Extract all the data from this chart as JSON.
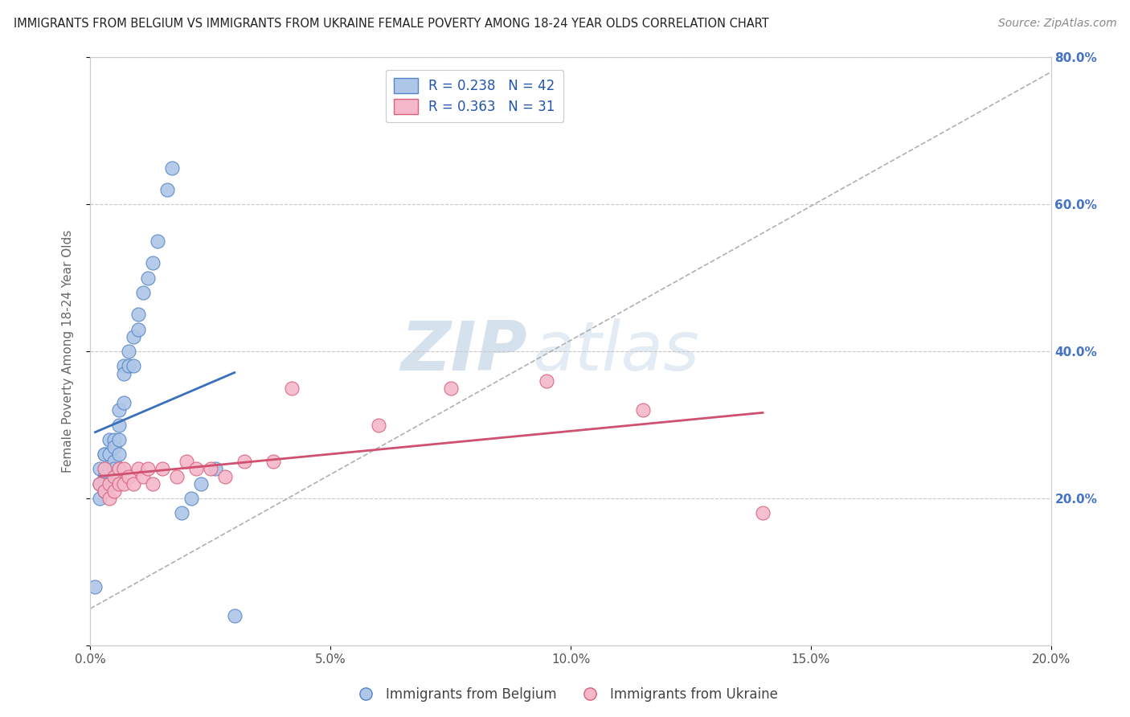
{
  "title": "IMMIGRANTS FROM BELGIUM VS IMMIGRANTS FROM UKRAINE FEMALE POVERTY AMONG 18-24 YEAR OLDS CORRELATION CHART",
  "source": "Source: ZipAtlas.com",
  "ylabel": "Female Poverty Among 18-24 Year Olds",
  "xlim": [
    0.0,
    0.2
  ],
  "ylim": [
    0.0,
    0.8
  ],
  "xticks": [
    0.0,
    0.05,
    0.1,
    0.15,
    0.2
  ],
  "yticks": [
    0.0,
    0.2,
    0.4,
    0.6,
    0.8
  ],
  "xticklabels": [
    "0.0%",
    "5.0%",
    "10.0%",
    "15.0%",
    "20.0%"
  ],
  "yticklabels_right": [
    "",
    "20.0%",
    "40.0%",
    "60.0%",
    "80.0%"
  ],
  "belgium_R": 0.238,
  "belgium_N": 42,
  "ukraine_R": 0.363,
  "ukraine_N": 31,
  "belgium_color": "#aec6e8",
  "ukraine_color": "#f4b8ca",
  "belgium_edge_color": "#5585c5",
  "ukraine_edge_color": "#d9607a",
  "belgium_line_color": "#3a6fbd",
  "ukraine_line_color": "#d05070",
  "legend_label_belgium": "Immigrants from Belgium",
  "legend_label_ukraine": "Immigrants from Ukraine",
  "belgium_scatter_x": [
    0.001,
    0.002,
    0.002,
    0.002,
    0.003,
    0.003,
    0.003,
    0.003,
    0.003,
    0.004,
    0.004,
    0.004,
    0.004,
    0.005,
    0.005,
    0.005,
    0.005,
    0.005,
    0.006,
    0.006,
    0.006,
    0.006,
    0.007,
    0.007,
    0.007,
    0.008,
    0.008,
    0.009,
    0.009,
    0.01,
    0.01,
    0.011,
    0.012,
    0.013,
    0.014,
    0.016,
    0.017,
    0.019,
    0.021,
    0.023,
    0.026,
    0.03
  ],
  "belgium_scatter_y": [
    0.08,
    0.24,
    0.22,
    0.2,
    0.26,
    0.26,
    0.23,
    0.22,
    0.21,
    0.28,
    0.26,
    0.24,
    0.22,
    0.28,
    0.27,
    0.25,
    0.24,
    0.22,
    0.32,
    0.3,
    0.28,
    0.26,
    0.38,
    0.37,
    0.33,
    0.4,
    0.38,
    0.42,
    0.38,
    0.45,
    0.43,
    0.48,
    0.5,
    0.52,
    0.55,
    0.62,
    0.65,
    0.18,
    0.2,
    0.22,
    0.24,
    0.04
  ],
  "ukraine_scatter_x": [
    0.002,
    0.003,
    0.003,
    0.004,
    0.004,
    0.005,
    0.005,
    0.006,
    0.006,
    0.007,
    0.007,
    0.008,
    0.009,
    0.01,
    0.011,
    0.012,
    0.013,
    0.015,
    0.018,
    0.02,
    0.022,
    0.025,
    0.028,
    0.032,
    0.038,
    0.042,
    0.06,
    0.075,
    0.095,
    0.115,
    0.14
  ],
  "ukraine_scatter_y": [
    0.22,
    0.24,
    0.21,
    0.22,
    0.2,
    0.23,
    0.21,
    0.24,
    0.22,
    0.24,
    0.22,
    0.23,
    0.22,
    0.24,
    0.23,
    0.24,
    0.22,
    0.24,
    0.23,
    0.25,
    0.24,
    0.24,
    0.23,
    0.25,
    0.25,
    0.35,
    0.3,
    0.35,
    0.36,
    0.32,
    0.18
  ],
  "watermark_zip": "ZIP",
  "watermark_atlas": "atlas",
  "background_color": "#ffffff"
}
